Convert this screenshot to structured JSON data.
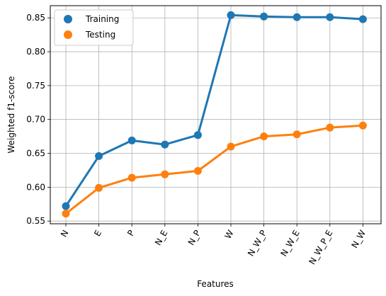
{
  "chart_data": {
    "type": "line",
    "title": "",
    "xlabel": "Features",
    "ylabel": "Weighted f1-score",
    "categories": [
      "N",
      "E",
      "P",
      "N_E",
      "N_P",
      "W",
      "N_W_P",
      "N_W_E",
      "N_W_P_E",
      "N_W"
    ],
    "series": [
      {
        "name": "Training",
        "color": "#1f77b4",
        "values": [
          0.572,
          0.646,
          0.669,
          0.663,
          0.677,
          0.854,
          0.852,
          0.851,
          0.851,
          0.848
        ]
      },
      {
        "name": "Testing",
        "color": "#ff7f0e",
        "values": [
          0.561,
          0.599,
          0.614,
          0.619,
          0.624,
          0.66,
          0.675,
          0.678,
          0.688,
          0.691
        ]
      }
    ],
    "ylim": [
      0.546,
      0.868
    ],
    "yticks": [
      "0.55",
      "0.60",
      "0.65",
      "0.70",
      "0.75",
      "0.80",
      "0.85"
    ],
    "grid": true,
    "legend": "top-left"
  }
}
